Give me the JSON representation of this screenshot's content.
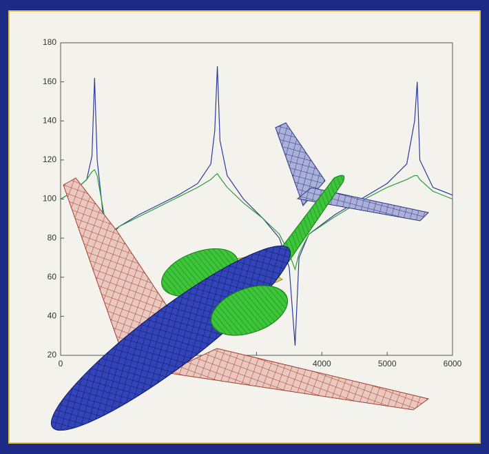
{
  "chart_data": {
    "type": "line",
    "x": [
      0,
      200,
      400,
      480,
      520,
      560,
      650,
      720,
      900,
      1200,
      1500,
      1800,
      2100,
      2300,
      2360,
      2400,
      2440,
      2550,
      2800,
      3100,
      3350,
      3500,
      3590,
      3650,
      3800,
      4200,
      4600,
      5000,
      5300,
      5420,
      5460,
      5500,
      5700,
      6000
    ],
    "series": [
      {
        "color": "#2a3a9a",
        "values": [
          100,
          104,
          110,
          122,
          162,
          120,
          92,
          80,
          86,
          92,
          97,
          102,
          108,
          118,
          135,
          168,
          130,
          112,
          100,
          90,
          80,
          65,
          25,
          70,
          82,
          92,
          100,
          108,
          118,
          140,
          160,
          120,
          106,
          102
        ]
      },
      {
        "color": "#2f9a3a",
        "values": [
          100,
          104,
          110,
          114,
          115,
          112,
          95,
          82,
          86,
          91,
          96,
          101,
          106,
          110,
          112,
          113,
          111,
          106,
          98,
          90,
          82,
          72,
          64,
          72,
          82,
          91,
          99,
          106,
          110,
          112,
          112,
          110,
          104,
          100
        ]
      }
    ],
    "xlim": [
      0,
      6000
    ],
    "xticks": [
      0,
      1000,
      2000,
      3000,
      4000,
      5000,
      6000
    ],
    "ylim": [
      20,
      180
    ],
    "yticks": [
      20,
      40,
      60,
      80,
      100,
      120,
      140,
      160,
      180
    ]
  }
}
